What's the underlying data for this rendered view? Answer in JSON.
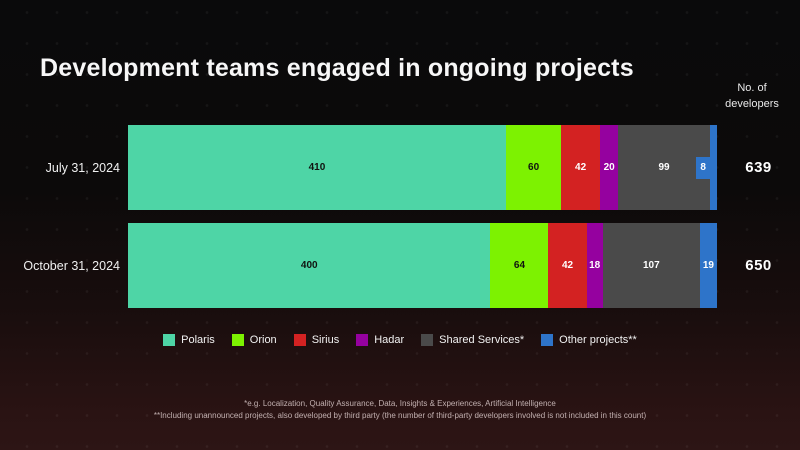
{
  "title": "Development teams engaged in ongoing projects",
  "axis_label": {
    "line1": "No. of",
    "line2": "developers"
  },
  "chart_data": {
    "type": "bar",
    "variant": "horizontal-stacked",
    "title": "Development teams engaged in ongoing projects",
    "value_axis_label": "No. of developers",
    "legend_position": "bottom",
    "grid": false,
    "categories": [
      "July 31, 2024",
      "October 31, 2024"
    ],
    "series": [
      {
        "name": "Polaris",
        "color": "#4ed5a6",
        "text_color": "#101310",
        "values": [
          410,
          400
        ]
      },
      {
        "name": "Orion",
        "color": "#7df201",
        "text_color": "#101310",
        "values": [
          60,
          64
        ]
      },
      {
        "name": "Sirius",
        "color": "#d32222",
        "text_color": "#ffffff",
        "values": [
          42,
          42
        ]
      },
      {
        "name": "Hadar",
        "color": "#95019f",
        "text_color": "#ffffff",
        "values": [
          20,
          18
        ]
      },
      {
        "name": "Shared Services*",
        "color": "#4a4a4a",
        "text_color": "#ffffff",
        "values": [
          99,
          107
        ]
      },
      {
        "name": "Other projects**",
        "color": "#2e74c9",
        "text_color": "#ffffff",
        "values": [
          8,
          19
        ]
      }
    ],
    "totals": [
      639,
      650
    ]
  },
  "footnotes": [
    "*e.g. Localization, Quality Assurance, Data, Insights & Experiences, Artificial Intelligence",
    "**Including unannounced projects, also developed by third party (the number of third-party developers involved is not included in this count)"
  ]
}
